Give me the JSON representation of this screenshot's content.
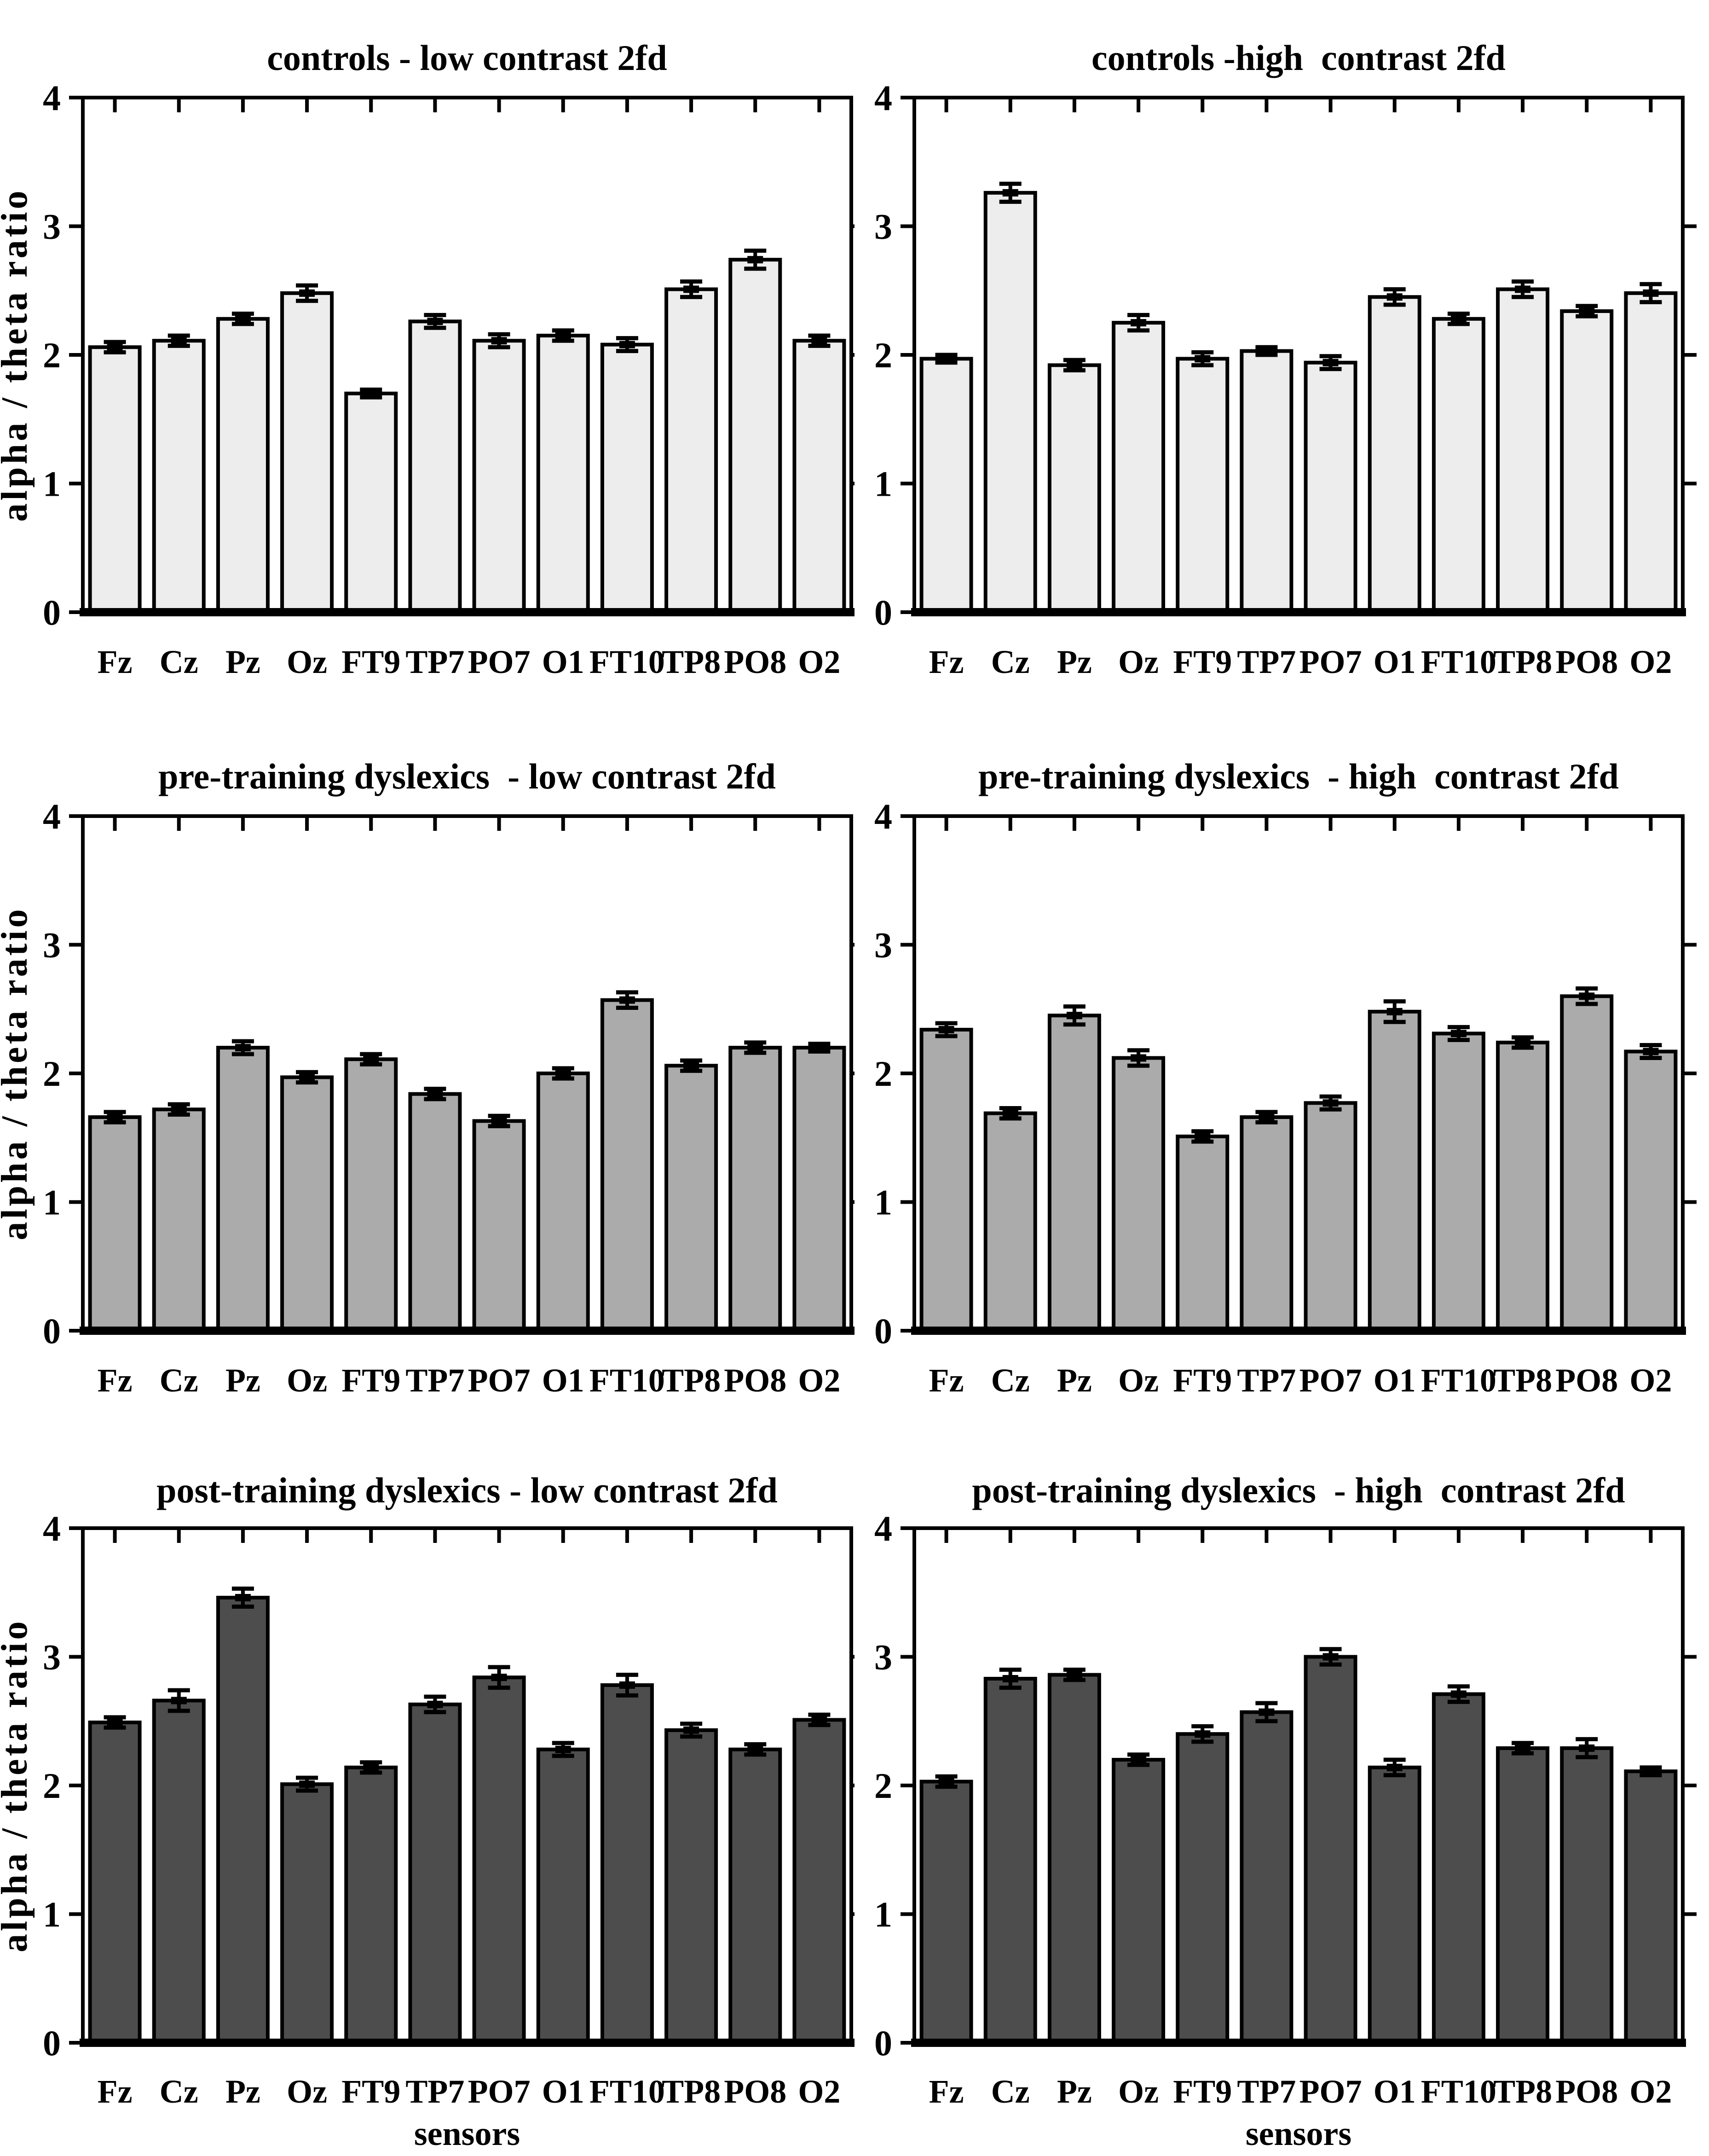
{
  "figure": {
    "ylabel": "alpha / theta ratio",
    "xlabel": "sensors",
    "background": "#ffffff",
    "axis_color": "#000000",
    "categories": [
      "Fz",
      "Cz",
      "Pz",
      "Oz",
      "FT9",
      "TP7",
      "PO7",
      "O1",
      "FT10",
      "TP8",
      "PO8",
      "O2"
    ],
    "ylim": [
      0,
      4
    ],
    "yticks": [
      "0",
      "1",
      "2",
      "3",
      "4"
    ]
  },
  "chart_data": [
    {
      "type": "bar",
      "title": "controls - low contrast 2fd",
      "bar_color": "#ededed",
      "row": 0,
      "col": 0,
      "categories": [
        "Fz",
        "Cz",
        "Pz",
        "Oz",
        "FT9",
        "TP7",
        "PO7",
        "O1",
        "FT10",
        "TP8",
        "PO8",
        "O2"
      ],
      "values": [
        2.06,
        2.11,
        2.28,
        2.48,
        1.7,
        2.26,
        2.11,
        2.15,
        2.08,
        2.51,
        2.74,
        2.11
      ],
      "errors": [
        0.04,
        0.04,
        0.04,
        0.06,
        0.03,
        0.05,
        0.05,
        0.04,
        0.05,
        0.06,
        0.07,
        0.04
      ],
      "ylabel": "alpha / theta ratio",
      "xlabel": "",
      "ylim": [
        0,
        4
      ]
    },
    {
      "type": "bar",
      "title": "controls -high  contrast 2fd",
      "bar_color": "#ededed",
      "row": 0,
      "col": 1,
      "categories": [
        "Fz",
        "Cz",
        "Pz",
        "Oz",
        "FT9",
        "TP7",
        "PO7",
        "O1",
        "FT10",
        "TP8",
        "PO8",
        "O2"
      ],
      "values": [
        1.97,
        3.26,
        1.92,
        2.25,
        1.97,
        2.03,
        1.94,
        2.45,
        2.28,
        2.51,
        2.34,
        2.48
      ],
      "errors": [
        0.03,
        0.07,
        0.04,
        0.06,
        0.05,
        0.03,
        0.05,
        0.06,
        0.04,
        0.06,
        0.04,
        0.07
      ],
      "ylabel": "",
      "xlabel": "",
      "ylim": [
        0,
        4
      ]
    },
    {
      "type": "bar",
      "title": "pre-training dyslexics  - low contrast 2fd",
      "bar_color": "#ababab",
      "row": 1,
      "col": 0,
      "categories": [
        "Fz",
        "Cz",
        "Pz",
        "Oz",
        "FT9",
        "TP7",
        "PO7",
        "O1",
        "FT10",
        "TP8",
        "PO8",
        "O2"
      ],
      "values": [
        1.66,
        1.72,
        2.2,
        1.97,
        2.11,
        1.84,
        1.63,
        2.0,
        2.57,
        2.06,
        2.2,
        2.2
      ],
      "errors": [
        0.04,
        0.04,
        0.05,
        0.04,
        0.04,
        0.04,
        0.04,
        0.04,
        0.06,
        0.04,
        0.04,
        0.03
      ],
      "ylabel": "alpha / theta ratio",
      "xlabel": "",
      "ylim": [
        0,
        4
      ]
    },
    {
      "type": "bar",
      "title": "pre-training dyslexics  - high  contrast 2fd",
      "bar_color": "#ababab",
      "row": 1,
      "col": 1,
      "categories": [
        "Fz",
        "Cz",
        "Pz",
        "Oz",
        "FT9",
        "TP7",
        "PO7",
        "O1",
        "FT10",
        "TP8",
        "PO8",
        "O2"
      ],
      "values": [
        2.34,
        1.69,
        2.45,
        2.12,
        1.51,
        1.66,
        1.77,
        2.48,
        2.31,
        2.24,
        2.6,
        2.17
      ],
      "errors": [
        0.05,
        0.04,
        0.07,
        0.06,
        0.04,
        0.04,
        0.05,
        0.08,
        0.05,
        0.04,
        0.06,
        0.05
      ],
      "ylabel": "",
      "xlabel": "",
      "ylim": [
        0,
        4
      ]
    },
    {
      "type": "bar",
      "title": "post-training dyslexics - low contrast 2fd",
      "bar_color": "#4d4d4d",
      "row": 2,
      "col": 0,
      "categories": [
        "Fz",
        "Cz",
        "Pz",
        "Oz",
        "FT9",
        "TP7",
        "PO7",
        "O1",
        "FT10",
        "TP8",
        "PO8",
        "O2"
      ],
      "values": [
        2.49,
        2.66,
        3.46,
        2.01,
        2.14,
        2.63,
        2.84,
        2.28,
        2.78,
        2.43,
        2.28,
        2.51
      ],
      "errors": [
        0.04,
        0.08,
        0.07,
        0.05,
        0.04,
        0.06,
        0.08,
        0.05,
        0.08,
        0.05,
        0.04,
        0.04
      ],
      "ylabel": "alpha / theta ratio",
      "xlabel": "sensors",
      "ylim": [
        0,
        4
      ]
    },
    {
      "type": "bar",
      "title": "post-training dyslexics  - high  contrast 2fd",
      "bar_color": "#4d4d4d",
      "row": 2,
      "col": 1,
      "categories": [
        "Fz",
        "Cz",
        "Pz",
        "Oz",
        "FT9",
        "TP7",
        "PO7",
        "O1",
        "FT10",
        "TP8",
        "PO8",
        "O2"
      ],
      "values": [
        2.03,
        2.83,
        2.86,
        2.2,
        2.4,
        2.57,
        3.0,
        2.14,
        2.71,
        2.29,
        2.29,
        2.11
      ],
      "errors": [
        0.04,
        0.07,
        0.04,
        0.04,
        0.06,
        0.07,
        0.06,
        0.06,
        0.06,
        0.04,
        0.07,
        0.03
      ],
      "ylabel": "",
      "xlabel": "sensors",
      "ylim": [
        0,
        4
      ]
    }
  ]
}
